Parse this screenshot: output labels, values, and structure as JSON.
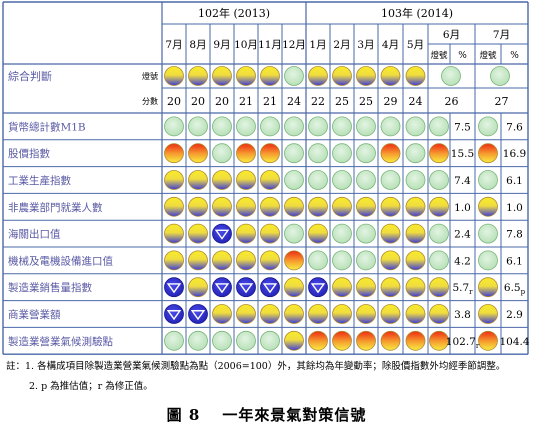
{
  "header": {
    "year1": "102年 (2013)",
    "year2": "103年 (2014)",
    "months": [
      "7月",
      "8月",
      "9月",
      "10月",
      "11月",
      "12月",
      "1月",
      "2月",
      "3月",
      "4月",
      "5月"
    ],
    "june": "6月",
    "july": "7月",
    "light_label": "燈號",
    "percent_label": "%"
  },
  "composite": {
    "label": "綜合判斷",
    "light_label": "燈號",
    "score_label": "分數",
    "lights": [
      "yb",
      "yb",
      "yb",
      "yb",
      "yb",
      "g",
      "yb",
      "yb",
      "yb",
      "yb",
      "yb",
      "g",
      "g"
    ],
    "scores": [
      "20",
      "20",
      "20",
      "21",
      "21",
      "24",
      "22",
      "25",
      "25",
      "29",
      "24",
      "26",
      "27"
    ]
  },
  "rows": [
    {
      "label": "貨幣總計數M1B",
      "lights": [
        "g",
        "g",
        "g",
        "g",
        "g",
        "g",
        "g",
        "g",
        "g",
        "g",
        "g",
        "g",
        "g"
      ],
      "june": "7.5",
      "july": "7.6"
    },
    {
      "label": "股價指數",
      "lights": [
        "yr",
        "yr",
        "g",
        "yr",
        "yr",
        "g",
        "g",
        "g",
        "g",
        "yr",
        "g",
        "yr",
        "yr"
      ],
      "june": "15.5",
      "july": "16.9"
    },
    {
      "label": "工業生產指數",
      "lights": [
        "yb",
        "yb",
        "yb",
        "yb",
        "yb",
        "g",
        "g",
        "g",
        "g",
        "g",
        "g",
        "g",
        "g"
      ],
      "june": "7.4",
      "july": "6.1"
    },
    {
      "label": "非農業部門就業人數",
      "lights": [
        "yb",
        "yb",
        "yb",
        "yb",
        "yb",
        "yb",
        "yb",
        "yb",
        "yb",
        "yb",
        "yb",
        "yb",
        "yb"
      ],
      "june": "1.0",
      "july": "1.0"
    },
    {
      "label": "海關出口值",
      "lights": [
        "yb",
        "yb",
        "b",
        "yb",
        "yb",
        "g",
        "yb",
        "g",
        "g",
        "yb",
        "yb",
        "g",
        "g"
      ],
      "june": "2.4",
      "july": "7.8"
    },
    {
      "label": "機械及電機設備進口值",
      "lights": [
        "yb",
        "yb",
        "yb",
        "yb",
        "yb",
        "yr",
        "g",
        "g",
        "g",
        "yb",
        "yb",
        "g",
        "g"
      ],
      "june": "4.2",
      "july": "6.1"
    },
    {
      "label": "製造業銷售量指數",
      "lights": [
        "b",
        "yb",
        "b",
        "b",
        "b",
        "yb",
        "b",
        "yb",
        "yb",
        "yb",
        "yb",
        "yb",
        "yb"
      ],
      "june": "5.7",
      "june_sub": "r",
      "july": "6.5",
      "july_sub": "p"
    },
    {
      "label": "商業營業額",
      "lights": [
        "b",
        "b",
        "yb",
        "yb",
        "yb",
        "yb",
        "yb",
        "yb",
        "yb",
        "yb",
        "yb",
        "yb",
        "yb"
      ],
      "june": "3.8",
      "july": "2.9"
    },
    {
      "label": "製造業營業氣候測驗點",
      "lights": [
        "g",
        "g",
        "g",
        "g",
        "g",
        "yb",
        "yr",
        "yr",
        "yr",
        "yr",
        "yr",
        "yr",
        "yr"
      ],
      "june": "102.7",
      "june_sub": "r",
      "july": "104.4"
    }
  ],
  "colors": {
    "grid": "#4a68a8",
    "label_text": "#5a5aa5",
    "green": "#c8e8c8",
    "yellow": "#f6e62c",
    "blue": "#3a3ad6",
    "red": "#f03a18"
  },
  "notes": [
    "註：1. 各構成項目除製造業營業氣候測驗點為點（2006=100）外，其餘均為年變動率；除股價指數外均經季節調整。",
    "2. p 為推估值；r 為修正值。"
  ],
  "caption": {
    "figure": "圖 8",
    "title": "一年來景氣對策信號"
  }
}
